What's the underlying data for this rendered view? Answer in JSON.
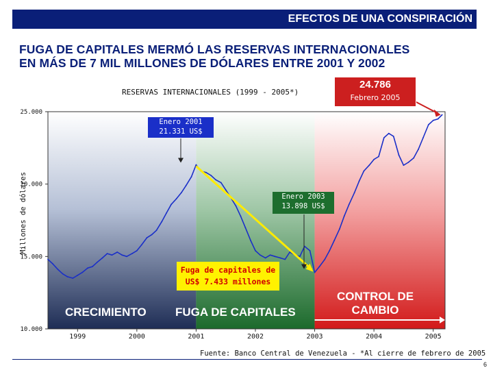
{
  "header": {
    "title": "EFECTOS DE UNA CONSPIRACIÓN"
  },
  "headline": {
    "line1": "FUGA DE CAPITALES MERMÓ LAS RESERVAS INTERNACIONALES",
    "line2": "EN MÁS DE 7 MIL MILLONES DE DÓLARES ENTRE 2001 Y 2002"
  },
  "chart_data": {
    "type": "line",
    "title": "RESERVAS INTERNACIONALES (1999 - 2005*)",
    "ylabel": "Millones de dólares",
    "xlabel": "",
    "ylim": [
      10000,
      25000
    ],
    "xlim": [
      1998.5,
      2005.2
    ],
    "yticks": [
      10000,
      15000,
      20000,
      25000
    ],
    "ytick_labels": [
      "10.000",
      "15.000",
      "20.000",
      "25.000"
    ],
    "xticks": [
      1999,
      2000,
      2001,
      2002,
      2003,
      2004,
      2005
    ],
    "xtick_labels": [
      "1999",
      "2000",
      "2001",
      "2002",
      "2003",
      "2004",
      "2005"
    ],
    "series": [
      {
        "color": "#1a2fc8",
        "points": [
          [
            1998.5,
            14800
          ],
          [
            1998.58,
            14500
          ],
          [
            1998.67,
            14100
          ],
          [
            1998.75,
            13800
          ],
          [
            1998.83,
            13600
          ],
          [
            1998.92,
            13500
          ],
          [
            1999.0,
            13700
          ],
          [
            1999.08,
            13900
          ],
          [
            1999.17,
            14200
          ],
          [
            1999.25,
            14300
          ],
          [
            1999.33,
            14600
          ],
          [
            1999.42,
            14900
          ],
          [
            1999.5,
            15200
          ],
          [
            1999.58,
            15100
          ],
          [
            1999.67,
            15300
          ],
          [
            1999.75,
            15100
          ],
          [
            1999.83,
            15000
          ],
          [
            1999.92,
            15200
          ],
          [
            2000.0,
            15400
          ],
          [
            2000.08,
            15800
          ],
          [
            2000.17,
            16300
          ],
          [
            2000.25,
            16500
          ],
          [
            2000.33,
            16800
          ],
          [
            2000.42,
            17400
          ],
          [
            2000.5,
            18000
          ],
          [
            2000.58,
            18600
          ],
          [
            2000.67,
            19000
          ],
          [
            2000.75,
            19400
          ],
          [
            2000.83,
            19900
          ],
          [
            2000.92,
            20500
          ],
          [
            2001.0,
            21331
          ],
          [
            2001.08,
            20900
          ],
          [
            2001.17,
            20800
          ],
          [
            2001.25,
            20600
          ],
          [
            2001.33,
            20300
          ],
          [
            2001.42,
            20100
          ],
          [
            2001.5,
            19600
          ],
          [
            2001.58,
            19100
          ],
          [
            2001.67,
            18500
          ],
          [
            2001.75,
            17800
          ],
          [
            2001.83,
            17000
          ],
          [
            2001.92,
            16100
          ],
          [
            2002.0,
            15400
          ],
          [
            2002.08,
            15100
          ],
          [
            2002.17,
            14900
          ],
          [
            2002.25,
            15100
          ],
          [
            2002.33,
            15000
          ],
          [
            2002.42,
            14900
          ],
          [
            2002.5,
            14800
          ],
          [
            2002.58,
            15300
          ],
          [
            2002.67,
            15100
          ],
          [
            2002.75,
            15000
          ],
          [
            2002.83,
            15700
          ],
          [
            2002.92,
            15400
          ],
          [
            2003.0,
            13898
          ],
          [
            2003.08,
            14300
          ],
          [
            2003.17,
            14800
          ],
          [
            2003.25,
            15400
          ],
          [
            2003.33,
            16100
          ],
          [
            2003.42,
            16900
          ],
          [
            2003.5,
            17800
          ],
          [
            2003.58,
            18600
          ],
          [
            2003.67,
            19400
          ],
          [
            2003.75,
            20200
          ],
          [
            2003.83,
            20900
          ],
          [
            2003.92,
            21300
          ],
          [
            2004.0,
            21700
          ],
          [
            2004.08,
            21900
          ],
          [
            2004.17,
            23200
          ],
          [
            2004.25,
            23500
          ],
          [
            2004.33,
            23300
          ],
          [
            2004.42,
            22000
          ],
          [
            2004.5,
            21300
          ],
          [
            2004.58,
            21500
          ],
          [
            2004.67,
            21800
          ],
          [
            2004.75,
            22400
          ],
          [
            2004.83,
            23200
          ],
          [
            2004.92,
            24100
          ],
          [
            2005.0,
            24400
          ],
          [
            2005.08,
            24500
          ],
          [
            2005.15,
            24786
          ]
        ]
      }
    ],
    "phases": [
      {
        "label": "CRECIMIENTO",
        "from": 1998.5,
        "to": 2001.0,
        "color": "#2c3f6a"
      },
      {
        "label": "FUGA DE CAPITALES",
        "from": 2001.0,
        "to": 2003.0,
        "color": "#1f6a2e"
      },
      {
        "label": "CONTROL DE CAMBIO",
        "from": 2003.0,
        "to": 2005.2,
        "color": "#d42020"
      }
    ],
    "annotations": {
      "start": {
        "label": "Enero  2001",
        "value": "21.331 US$"
      },
      "low": {
        "label": "Enero 2003",
        "value": "13.898 US$"
      },
      "peak": {
        "value": "24.786",
        "label": "Febrero 2005"
      },
      "loss": {
        "line1": "Fuga de capitales de",
        "line2": "US$ 7.433 millones"
      }
    }
  },
  "phase_labels": {
    "crecimiento": "CRECIMIENTO",
    "fuga": "FUGA DE CAPITALES",
    "control_1": "CONTROL DE",
    "control_2": "CAMBIO"
  },
  "footer": {
    "source": "Fuente: Banco Central de Venezuela - *Al cierre de febrero de 2005",
    "page": "6"
  }
}
